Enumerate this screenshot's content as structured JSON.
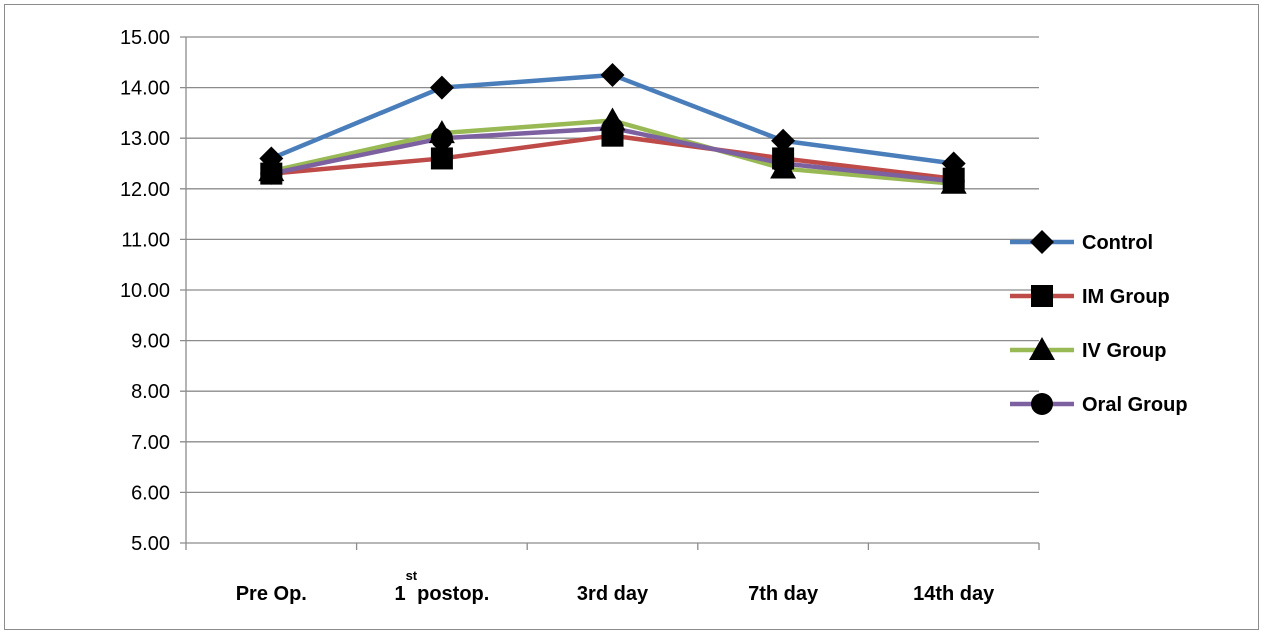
{
  "chart_data": {
    "type": "line",
    "title": "",
    "xlabel": "",
    "ylabel": "",
    "ylim": [
      5,
      15
    ],
    "yticks": [
      "15.00",
      "14.00",
      "13.00",
      "12.00",
      "11.00",
      "10.00",
      "9.00",
      "8.00",
      "7.00",
      "6.00",
      "5.00"
    ],
    "categories": [
      {
        "main": "Pre Op.",
        "sup": ""
      },
      {
        "main": "1",
        "sup": "st",
        "rest": "postop."
      },
      {
        "main": "3rd day",
        "sup": ""
      },
      {
        "main": "7th day",
        "sup": ""
      },
      {
        "main": "14th day",
        "sup": ""
      }
    ],
    "grid": "horizontal",
    "legend_position": "right",
    "series": [
      {
        "name": "Control",
        "color": "#4a7ebb",
        "marker": "diamond",
        "values": [
          12.6,
          14.0,
          14.25,
          12.95,
          12.5
        ]
      },
      {
        "name": "IM Group",
        "color": "#be4b48",
        "marker": "square",
        "values": [
          12.3,
          12.6,
          13.05,
          12.6,
          12.2
        ]
      },
      {
        "name": "IV Group",
        "color": "#98b954",
        "marker": "triangle",
        "values": [
          12.35,
          13.1,
          13.35,
          12.4,
          12.1
        ]
      },
      {
        "name": "Oral Group",
        "color": "#7d60a0",
        "marker": "circle",
        "values": [
          12.3,
          13.0,
          13.2,
          12.5,
          12.15
        ]
      }
    ]
  }
}
